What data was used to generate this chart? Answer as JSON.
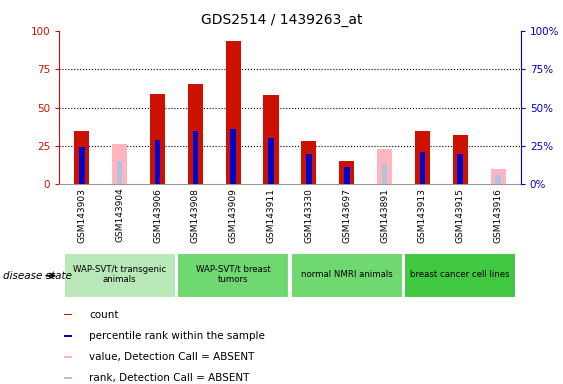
{
  "title": "GDS2514 / 1439263_at",
  "samples": [
    "GSM143903",
    "GSM143904",
    "GSM143906",
    "GSM143908",
    "GSM143909",
    "GSM143911",
    "GSM143330",
    "GSM143697",
    "GSM143891",
    "GSM143913",
    "GSM143915",
    "GSM143916"
  ],
  "count_values": [
    35,
    0,
    59,
    65,
    93,
    58,
    28,
    15,
    0,
    35,
    32,
    0
  ],
  "percentile_values": [
    24,
    0,
    29,
    35,
    36,
    30,
    20,
    11,
    0,
    21,
    20,
    0
  ],
  "absent_value_values": [
    0,
    26,
    0,
    0,
    0,
    0,
    0,
    0,
    23,
    0,
    0,
    10
  ],
  "absent_rank_values": [
    0,
    15,
    0,
    0,
    0,
    0,
    0,
    0,
    13,
    0,
    0,
    6
  ],
  "groups": [
    {
      "label": "WAP-SVT/t transgenic\nanimals",
      "samples": [
        "GSM143903",
        "GSM143904",
        "GSM143906"
      ],
      "color": "#b8e8b8"
    },
    {
      "label": "WAP-SVT/t breast\ntumors",
      "samples": [
        "GSM143908",
        "GSM143909",
        "GSM143911"
      ],
      "color": "#70d870"
    },
    {
      "label": "normal NMRI animals",
      "samples": [
        "GSM143330",
        "GSM143697",
        "GSM143891"
      ],
      "color": "#70d870"
    },
    {
      "label": "breast cancer cell lines",
      "samples": [
        "GSM143913",
        "GSM143915",
        "GSM143916"
      ],
      "color": "#40c840"
    }
  ],
  "ylim": [
    0,
    100
  ],
  "yticks": [
    0,
    25,
    50,
    75,
    100
  ],
  "count_color": "#cc1100",
  "percentile_color": "#0000cc",
  "absent_value_color": "#ffb6c1",
  "absent_rank_color": "#b0c4de",
  "bar_width": 0.4,
  "narrow_bar_width": 0.15,
  "background_color": "#ffffff",
  "plot_bg_color": "#ffffff",
  "xtick_bg_color": "#cccccc",
  "group_bg_color": "#cccccc"
}
